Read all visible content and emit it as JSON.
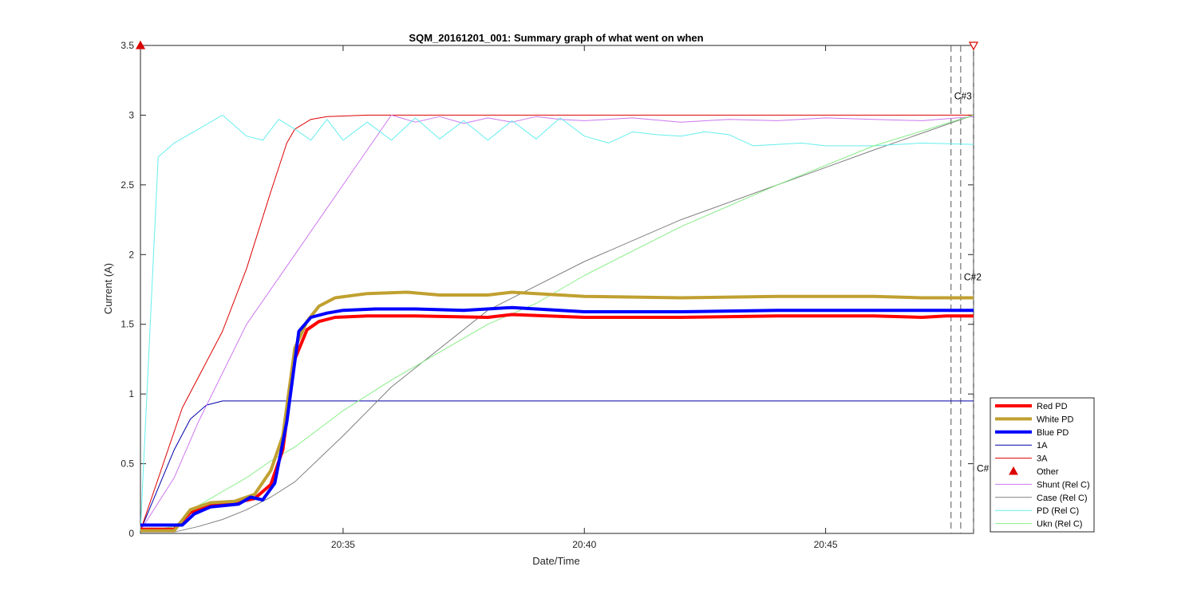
{
  "chart_data": {
    "type": "line",
    "title": "SQM_20161201_001: Summary graph of what went on when",
    "xlabel": "Date/Time",
    "ylabel": "Current (A)",
    "xlim": [
      "20:30:48",
      "20:48:04"
    ],
    "ylim": [
      0,
      3.5
    ],
    "x_ticks": [
      "20:35",
      "20:40",
      "20:45"
    ],
    "y_ticks": [
      "0",
      "0.5",
      "1",
      "1.5",
      "2",
      "2.5",
      "3",
      "3.5"
    ],
    "grid": false,
    "legend_position": "bottom-right outside",
    "legend": [
      "Red PD",
      "White PD",
      "Blue PD",
      "1A",
      "3A",
      "Other",
      "Shunt (Rel C)",
      "Case (Rel C)",
      "PD (Rel C)",
      "Ukn (Rel C)"
    ],
    "series": [
      {
        "name": "Red PD",
        "color": "#ff0000",
        "style": "thick",
        "x": [
          "20:30:48",
          "20:31:30",
          "20:31:50",
          "20:32:15",
          "20:32:45",
          "20:33:10",
          "20:33:30",
          "20:33:45",
          "20:34:00",
          "20:34:15",
          "20:34:30",
          "20:34:50",
          "20:35:30",
          "20:36:30",
          "20:38:00",
          "20:38:30",
          "20:40:00",
          "20:42:00",
          "20:44:00",
          "20:46:00",
          "20:47:00",
          "20:47:30",
          "20:48:04"
        ],
        "y": [
          0.03,
          0.03,
          0.15,
          0.2,
          0.22,
          0.25,
          0.35,
          0.6,
          1.25,
          1.46,
          1.52,
          1.55,
          1.56,
          1.56,
          1.55,
          1.57,
          1.55,
          1.55,
          1.56,
          1.56,
          1.55,
          1.56,
          1.56
        ]
      },
      {
        "name": "White PD",
        "color": "#c0a030",
        "style": "thick",
        "x": [
          "20:30:48",
          "20:31:30",
          "20:31:50",
          "20:32:15",
          "20:32:45",
          "20:33:10",
          "20:33:30",
          "20:33:45",
          "20:34:00",
          "20:34:15",
          "20:34:30",
          "20:34:50",
          "20:35:30",
          "20:36:20",
          "20:37:00",
          "20:38:00",
          "20:38:30",
          "20:40:00",
          "20:42:00",
          "20:44:00",
          "20:46:00",
          "20:47:00",
          "20:48:04"
        ],
        "y": [
          0.02,
          0.02,
          0.17,
          0.22,
          0.23,
          0.28,
          0.45,
          0.7,
          1.33,
          1.52,
          1.63,
          1.69,
          1.72,
          1.73,
          1.71,
          1.71,
          1.73,
          1.7,
          1.69,
          1.7,
          1.7,
          1.69,
          1.69
        ]
      },
      {
        "name": "Blue PD",
        "color": "#0000ff",
        "style": "thick",
        "x": [
          "20:30:48",
          "20:31:40",
          "20:31:55",
          "20:32:15",
          "20:32:50",
          "20:33:05",
          "20:33:20",
          "20:33:35",
          "20:33:50",
          "20:34:05",
          "20:34:20",
          "20:34:40",
          "20:35:00",
          "20:35:40",
          "20:36:30",
          "20:37:30",
          "20:38:30",
          "20:40:00",
          "20:42:00",
          "20:44:00",
          "20:46:00",
          "20:48:04"
        ],
        "y": [
          0.06,
          0.06,
          0.14,
          0.19,
          0.21,
          0.26,
          0.24,
          0.36,
          0.8,
          1.45,
          1.55,
          1.58,
          1.6,
          1.61,
          1.61,
          1.6,
          1.62,
          1.59,
          1.59,
          1.6,
          1.6,
          1.6
        ]
      },
      {
        "name": "1A",
        "color": "#0000aa",
        "style": "thin",
        "x": [
          "20:30:48",
          "20:31:30",
          "20:31:50",
          "20:32:10",
          "20:32:30",
          "20:33:00",
          "20:36:00",
          "20:48:04"
        ],
        "y": [
          0.02,
          0.6,
          0.82,
          0.92,
          0.95,
          0.95,
          0.95,
          0.95
        ]
      },
      {
        "name": "3A",
        "color": "#dd0000",
        "style": "thin",
        "x": [
          "20:30:48",
          "20:31:40",
          "20:32:30",
          "20:33:00",
          "20:33:30",
          "20:33:50",
          "20:34:00",
          "20:34:20",
          "20:34:40",
          "20:35:30",
          "20:48:04"
        ],
        "y": [
          0.02,
          0.9,
          1.45,
          1.9,
          2.45,
          2.8,
          2.9,
          2.97,
          2.99,
          3.0,
          3.0
        ]
      },
      {
        "name": "Shunt (Rel C)",
        "color": "#cc77ee",
        "style": "thin",
        "x": [
          "20:30:48",
          "20:31:30",
          "20:32:00",
          "20:33:00",
          "20:34:00",
          "20:35:00",
          "20:36:00",
          "20:36:30",
          "20:37:00",
          "20:37:30",
          "20:38:00",
          "20:38:30",
          "20:39:00",
          "20:39:30",
          "20:40:00",
          "20:41:00",
          "20:42:00",
          "20:43:00",
          "20:44:00",
          "20:45:00",
          "20:46:00",
          "20:47:00",
          "20:48:04"
        ],
        "y": [
          0.02,
          0.4,
          0.8,
          1.5,
          2.0,
          2.5,
          3.0,
          2.95,
          2.99,
          2.94,
          2.98,
          2.95,
          2.99,
          2.97,
          2.96,
          2.98,
          2.95,
          2.97,
          2.96,
          2.98,
          2.97,
          2.96,
          2.99
        ]
      },
      {
        "name": "Case (Rel C)",
        "color": "#808080",
        "style": "thin",
        "x": [
          "20:30:48",
          "20:31:30",
          "20:32:00",
          "20:32:30",
          "20:33:00",
          "20:33:30",
          "20:34:00",
          "20:35:00",
          "20:36:00",
          "20:38:00",
          "20:40:00",
          "20:42:00",
          "20:44:00",
          "20:46:00",
          "20:48:04"
        ],
        "y": [
          0.01,
          0.01,
          0.05,
          0.1,
          0.17,
          0.26,
          0.37,
          0.7,
          1.05,
          1.6,
          1.95,
          2.25,
          2.5,
          2.75,
          3.0
        ]
      },
      {
        "name": "PD (Rel C)",
        "color": "#66eeee",
        "style": "thin",
        "x": [
          "20:30:48",
          "20:31:10",
          "20:31:30",
          "20:32:00",
          "20:32:30",
          "20:33:00",
          "20:33:20",
          "20:33:40",
          "20:34:00",
          "20:34:20",
          "20:34:40",
          "20:35:00",
          "20:35:30",
          "20:36:00",
          "20:36:30",
          "20:37:00",
          "20:37:30",
          "20:38:00",
          "20:38:30",
          "20:39:00",
          "20:39:30",
          "20:40:00",
          "20:40:30",
          "20:41:00",
          "20:41:30",
          "20:42:00",
          "20:42:30",
          "20:43:00",
          "20:43:30",
          "20:44:00",
          "20:44:30",
          "20:45:00",
          "20:46:00",
          "20:47:00",
          "20:48:04"
        ],
        "y": [
          0.02,
          2.7,
          2.8,
          2.9,
          3.0,
          2.85,
          2.82,
          2.97,
          2.9,
          2.82,
          2.97,
          2.82,
          2.95,
          2.82,
          2.98,
          2.83,
          2.96,
          2.82,
          2.96,
          2.83,
          2.98,
          2.85,
          2.8,
          2.88,
          2.86,
          2.85,
          2.88,
          2.86,
          2.78,
          2.79,
          2.8,
          2.78,
          2.78,
          2.8,
          2.79
        ]
      },
      {
        "name": "Ukn (Rel C)",
        "color": "#88ee88",
        "style": "thin",
        "x": [
          "20:30:48",
          "20:31:30",
          "20:32:00",
          "20:32:30",
          "20:33:00",
          "20:33:30",
          "20:34:00",
          "20:34:30",
          "20:35:00",
          "20:36:00",
          "20:37:00",
          "20:38:00",
          "20:39:00",
          "20:40:00",
          "20:42:00",
          "20:44:00",
          "20:46:00",
          "20:48:04"
        ],
        "y": [
          0.01,
          0.05,
          0.2,
          0.3,
          0.4,
          0.52,
          0.62,
          0.75,
          0.88,
          1.1,
          1.3,
          1.5,
          1.65,
          1.85,
          2.2,
          2.5,
          2.78,
          3.0
        ]
      }
    ],
    "other_markers": [
      {
        "x": "20:30:48",
        "y": 3.5,
        "shape": "triangle-up",
        "color": "#dd0000",
        "filled": true
      },
      {
        "x": "20:48:04",
        "y": 3.5,
        "shape": "triangle-down",
        "color": "#dd0000",
        "filled": false
      }
    ],
    "vertical_lines": [
      "20:47:36",
      "20:47:48",
      "20:48:04"
    ],
    "annotations": [
      {
        "text": "C#3",
        "x": "20:47:36",
        "y": 3.0
      },
      {
        "text": "C#2",
        "x": "20:47:48",
        "y": 1.7
      },
      {
        "text": "C#",
        "x": "20:48:04",
        "y": 0.33
      }
    ]
  }
}
